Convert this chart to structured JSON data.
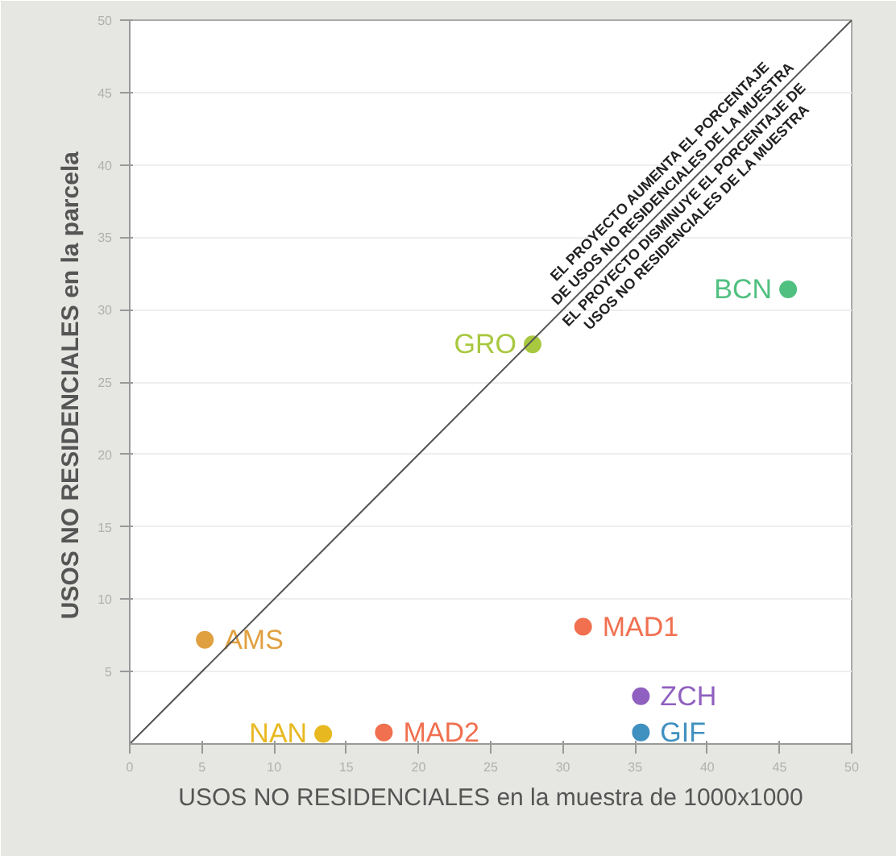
{
  "chart_data": {
    "type": "scatter",
    "xlabel": "USOS NO RESIDENCIALES en la muestra de 1000x1000",
    "ylabel": "USOS NO RESIDENCIALES  en la parcela",
    "xlim": [
      0,
      50
    ],
    "ylim": [
      0,
      50
    ],
    "xticks": [
      0,
      5,
      10,
      15,
      20,
      25,
      30,
      35,
      40,
      45,
      50
    ],
    "yticks": [
      5,
      10,
      15,
      20,
      25,
      30,
      35,
      40,
      45,
      50
    ],
    "grid": "y",
    "marker": "circle",
    "annotations": [
      "EL PROYECTO AUMENTA EL PORCENTAJE\nDE USOS NO RESIDENCIALES DE LA MUESTRA",
      "EL PROYECTO DISMINUYE EL PORCENTAJE DE\nUSOS NO RESIDENCIALES DE LA MUESTRA"
    ],
    "series": [
      {
        "name": "AMS",
        "color": "#e0a040",
        "x": [
          5.2
        ],
        "values": [
          7.2
        ]
      },
      {
        "name": "NAN",
        "color": "#e8b820",
        "x": [
          13.4
        ],
        "values": [
          0.7
        ]
      },
      {
        "name": "MAD2",
        "color": "#f07050",
        "x": [
          17.6
        ],
        "values": [
          0.8
        ]
      },
      {
        "name": "GRO",
        "color": "#a8c840",
        "x": [
          27.9
        ],
        "values": [
          27.6
        ]
      },
      {
        "name": "BCN",
        "color": "#50c080",
        "x": [
          45.6
        ],
        "values": [
          31.4
        ]
      },
      {
        "name": "MAD1",
        "color": "#f07050",
        "x": [
          31.4
        ],
        "values": [
          8.1
        ]
      },
      {
        "name": "ZCH",
        "color": "#9060c0",
        "x": [
          35.4
        ],
        "values": [
          3.3
        ]
      },
      {
        "name": "GIF",
        "color": "#4090c0",
        "x": [
          35.4
        ],
        "values": [
          0.8
        ]
      },
      {
        "type": "line",
        "color": "#555555",
        "marker": "none",
        "x": [
          0,
          50
        ],
        "values": [
          0,
          50
        ]
      }
    ]
  }
}
